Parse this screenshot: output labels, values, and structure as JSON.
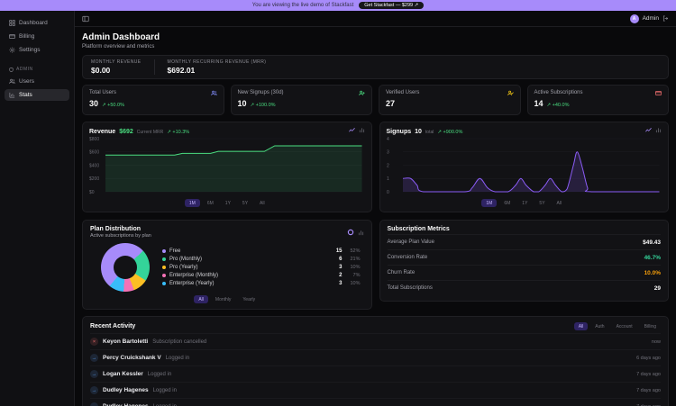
{
  "banner": {
    "text": "You are viewing the live demo of Stackfast",
    "cta": "Get Stackfast — $299 ↗"
  },
  "topbar": {
    "user": "Admin"
  },
  "sidebar": {
    "items": [
      {
        "label": "Dashboard"
      },
      {
        "label": "Billing"
      },
      {
        "label": "Settings"
      }
    ],
    "section_label": "ADMIN",
    "admin_items": [
      {
        "label": "Users"
      },
      {
        "label": "Stats"
      }
    ],
    "active_item": "Stats"
  },
  "header": {
    "title": "Admin Dashboard",
    "subtitle": "Platform overview and metrics"
  },
  "revenue_strip": {
    "items": [
      {
        "label": "MONTHLY REVENUE",
        "value": "$0.00"
      },
      {
        "label": "MONTHLY RECURRING REVENUE (MRR)",
        "value": "$692.01"
      }
    ]
  },
  "stat_cards": [
    {
      "label": "Total Users",
      "value": "30",
      "badge": "↗ +50.0%",
      "icon": "users-icon",
      "icon_color": "#818cf8"
    },
    {
      "label": "New Signups (30d)",
      "value": "10",
      "badge": "↗ +100.0%",
      "icon": "user-plus-icon",
      "icon_color": "#4ade80"
    },
    {
      "label": "Verified Users",
      "value": "27",
      "badge": "",
      "icon": "user-check-icon",
      "icon_color": "#facc15"
    },
    {
      "label": "Active Subscriptions",
      "value": "14",
      "badge": "↗ +40.0%",
      "icon": "credit-card-icon",
      "icon_color": "#f87171"
    }
  ],
  "chart_ranges": [
    "1M",
    "6M",
    "1Y",
    "5Y",
    "All"
  ],
  "selected_range": "1M",
  "chart_data": [
    {
      "type": "area",
      "name": "revenue",
      "title": "Revenue",
      "current_value": "$692",
      "caption": "Current MRR",
      "change": "↗ +10.3%",
      "color": "#4ade80",
      "fill_opacity": 0.12,
      "smooth": false,
      "ylim": [
        0,
        800
      ],
      "yticks": [
        "$800",
        "$600",
        "$400",
        "$200",
        "$0"
      ],
      "points": [
        [
          0,
          552
        ],
        [
          0.27,
          552
        ],
        [
          0.3,
          578
        ],
        [
          0.41,
          578
        ],
        [
          0.44,
          608
        ],
        [
          0.62,
          608
        ],
        [
          0.66,
          692
        ],
        [
          1,
          692
        ]
      ]
    },
    {
      "type": "area",
      "name": "signups",
      "title": "Signups",
      "current_value": "10",
      "caption": "total",
      "change": "↗ +900.0%",
      "color": "#8b5cf6",
      "fill_opacity": 0.18,
      "smooth": true,
      "ylim": [
        0,
        4
      ],
      "yticks": [
        "4",
        "3",
        "2",
        "1",
        "0"
      ],
      "points": [
        [
          0,
          1
        ],
        [
          0.03,
          1
        ],
        [
          0.055,
          0.5
        ],
        [
          0.08,
          0
        ],
        [
          0.24,
          0
        ],
        [
          0.27,
          0.3
        ],
        [
          0.3,
          1
        ],
        [
          0.33,
          0.3
        ],
        [
          0.36,
          0
        ],
        [
          0.41,
          0
        ],
        [
          0.44,
          0.5
        ],
        [
          0.46,
          1
        ],
        [
          0.48,
          0.5
        ],
        [
          0.51,
          0
        ],
        [
          0.53,
          0
        ],
        [
          0.555,
          0.5
        ],
        [
          0.575,
          1
        ],
        [
          0.595,
          0.5
        ],
        [
          0.62,
          0
        ],
        [
          0.64,
          0.2
        ],
        [
          0.665,
          2
        ],
        [
          0.68,
          3
        ],
        [
          0.7,
          1.8
        ],
        [
          0.72,
          0.3
        ],
        [
          0.735,
          0
        ],
        [
          1,
          0
        ]
      ]
    },
    {
      "type": "pie",
      "name": "plan-distribution",
      "title": "Plan Distribution",
      "start_angle": 220,
      "slices": [
        {
          "label": "Free",
          "value": 15,
          "pct": 52,
          "pct_label": "52%",
          "color": "#a78bfa"
        },
        {
          "label": "Pro (Monthly)",
          "value": 6,
          "pct": 21,
          "pct_label": "21%",
          "color": "#34d399"
        },
        {
          "label": "Pro (Yearly)",
          "value": 3,
          "pct": 10,
          "pct_label": "10%",
          "color": "#fbbf24"
        },
        {
          "label": "Enterprise (Monthly)",
          "value": 2,
          "pct": 7,
          "pct_label": "7%",
          "color": "#f472b6"
        },
        {
          "label": "Enterprise (Yearly)",
          "value": 3,
          "pct": 10,
          "pct_label": "10%",
          "color": "#38bdf8"
        }
      ]
    }
  ],
  "plan": {
    "title": "Plan Distribution",
    "subtitle": "Active subscriptions by plan",
    "filters": [
      "All",
      "Monthly",
      "Yearly"
    ],
    "selected_filter": "All"
  },
  "subscription_metrics": {
    "title": "Subscription Metrics",
    "rows": [
      {
        "label": "Average Plan Value",
        "value": "$49.43",
        "color": "#fafafa"
      },
      {
        "label": "Conversion Rate",
        "value": "46.7%",
        "color": "#34d399"
      },
      {
        "label": "Churn Rate",
        "value": "10.0%",
        "color": "#f59e0b"
      },
      {
        "label": "Total Subscriptions",
        "value": "29",
        "color": "#fafafa"
      }
    ]
  },
  "recent_activity": {
    "title": "Recent Activity",
    "filters": [
      "All",
      "Auth",
      "Account",
      "Billing"
    ],
    "selected_filter": "All",
    "items": [
      {
        "name": "Keyon Bartoletti",
        "action": "Subscription cancelled",
        "time": "now",
        "type": "cancel",
        "icon_glyph": "×"
      },
      {
        "name": "Percy Cruickshank V",
        "action": "Logged in",
        "time": "6 days ago",
        "type": "login",
        "icon_glyph": "→"
      },
      {
        "name": "Logan Kessler",
        "action": "Logged in",
        "time": "7 days ago",
        "type": "login",
        "icon_glyph": "→"
      },
      {
        "name": "Dudley Hagenes",
        "action": "Logged in",
        "time": "7 days ago",
        "type": "login",
        "icon_glyph": "→"
      },
      {
        "name": "Dudley Hagenes",
        "action": "Logged in",
        "time": "7 days ago",
        "type": "login",
        "icon_glyph": "→"
      }
    ]
  },
  "colors": {
    "accent": "#a78bfa",
    "green": "#4ade80",
    "purple_line": "#8b5cf6",
    "orange": "#f59e0b"
  }
}
